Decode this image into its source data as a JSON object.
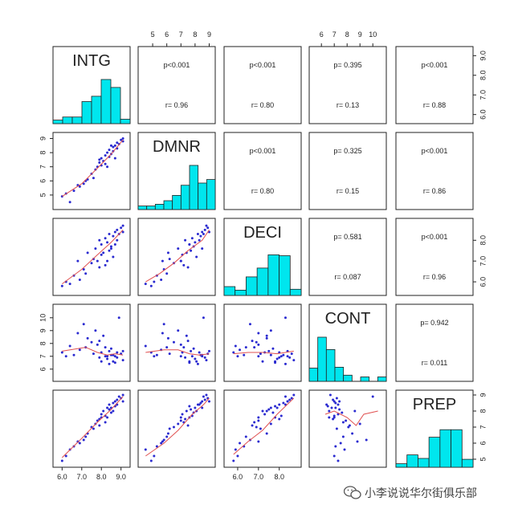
{
  "chart_data": {
    "type": "scatter-matrix",
    "variables": [
      "INTG",
      "DMNR",
      "DECI",
      "CONT",
      "PREP"
    ],
    "axes": {
      "INTG": {
        "ticks": [
          6.0,
          7.0,
          8.0,
          9.0
        ],
        "tick_labels": [
          "6.0",
          "7.0",
          "8.0",
          "9.0"
        ],
        "range": [
          5.7,
          9.3
        ]
      },
      "DMNR": {
        "ticks": [
          5,
          6,
          7,
          8,
          9
        ],
        "tick_labels": [
          "5",
          "6",
          "7",
          "8",
          "9"
        ],
        "range": [
          4.2,
          9.2
        ]
      },
      "DECI": {
        "ticks": [
          6.0,
          7.0,
          8.0
        ],
        "tick_labels": [
          "6.0",
          "7.0",
          "8.0"
        ],
        "range": [
          5.5,
          8.9
        ]
      },
      "CONT": {
        "ticks": [
          6,
          7,
          8,
          9,
          10
        ],
        "tick_labels": [
          "6",
          "7",
          "8",
          "9",
          "10"
        ],
        "range": [
          5.3,
          10.8
        ]
      },
      "PREP": {
        "ticks": [
          5,
          6,
          7,
          8,
          9
        ],
        "tick_labels": [
          "5",
          "6",
          "7",
          "8",
          "9"
        ],
        "range": [
          4.7,
          9.1
        ]
      }
    },
    "histograms": {
      "INTG": [
        0.08,
        0.15,
        0.15,
        0.5,
        0.62,
        1.0,
        0.82,
        0.1
      ],
      "DMNR": [
        0.08,
        0.08,
        0.12,
        0.2,
        0.32,
        0.55,
        1.0,
        0.6,
        0.68
      ],
      "DECI": [
        0.2,
        0.12,
        0.42,
        0.62,
        0.92,
        0.9,
        0.14
      ],
      "CONT": [
        0.3,
        1.0,
        0.72,
        0.32,
        0.14,
        0.0,
        0.1,
        0.0,
        0.1
      ],
      "PREP": [
        0.08,
        0.28,
        0.2,
        0.68,
        0.85,
        0.85,
        0.18
      ]
    },
    "correlations": [
      {
        "row": 0,
        "col": 1,
        "p": "p<0.001",
        "r": "r= 0.96"
      },
      {
        "row": 0,
        "col": 2,
        "p": "p<0.001",
        "r": "r= 0.80"
      },
      {
        "row": 0,
        "col": 3,
        "p": "p= 0.395",
        "r": "r= 0.13"
      },
      {
        "row": 0,
        "col": 4,
        "p": "p<0.001",
        "r": "r= 0.88"
      },
      {
        "row": 1,
        "col": 2,
        "p": "p<0.001",
        "r": "r= 0.80"
      },
      {
        "row": 1,
        "col": 3,
        "p": "p= 0.325",
        "r": "r= 0.15"
      },
      {
        "row": 1,
        "col": 4,
        "p": "p<0.001",
        "r": "r= 0.86"
      },
      {
        "row": 2,
        "col": 3,
        "p": "p= 0.581",
        "r": "r= 0.087"
      },
      {
        "row": 2,
        "col": 4,
        "p": "p<0.001",
        "r": "r= 0.96"
      },
      {
        "row": 3,
        "col": 4,
        "p": "p= 0.942",
        "r": "r= 0.011"
      }
    ],
    "observations": [
      {
        "INTG": 6.0,
        "DMNR": 4.9,
        "DECI": 5.8,
        "CONT": 7.3,
        "PREP": 4.9
      },
      {
        "INTG": 6.2,
        "DMNR": 5.1,
        "DECI": 6.0,
        "CONT": 7.0,
        "PREP": 5.2
      },
      {
        "INTG": 6.4,
        "DMNR": 4.5,
        "DECI": 5.9,
        "CONT": 7.8,
        "PREP": 5.6
      },
      {
        "INTG": 6.6,
        "DMNR": 5.3,
        "DECI": 6.3,
        "CONT": 7.1,
        "PREP": 5.8
      },
      {
        "INTG": 6.9,
        "DMNR": 5.6,
        "DECI": 6.1,
        "CONT": 7.5,
        "PREP": 6.0
      },
      {
        "INTG": 7.1,
        "DMNR": 5.8,
        "DECI": 6.6,
        "CONT": 9.5,
        "PREP": 6.2
      },
      {
        "INTG": 7.3,
        "DMNR": 6.1,
        "DECI": 7.4,
        "CONT": 8.4,
        "PREP": 6.6
      },
      {
        "INTG": 7.5,
        "DMNR": 6.5,
        "DECI": 6.9,
        "CONT": 8.1,
        "PREP": 7.0
      },
      {
        "INTG": 7.6,
        "DMNR": 6.2,
        "DECI": 7.1,
        "CONT": 7.2,
        "PREP": 6.9
      },
      {
        "INTG": 7.7,
        "DMNR": 6.8,
        "DECI": 7.6,
        "CONT": 9.0,
        "PREP": 7.2
      },
      {
        "INTG": 7.8,
        "DMNR": 7.0,
        "DECI": 7.0,
        "CONT": 7.9,
        "PREP": 7.4
      },
      {
        "INTG": 7.9,
        "DMNR": 7.3,
        "DECI": 8.0,
        "CONT": 6.9,
        "PREP": 7.5
      },
      {
        "INTG": 8.0,
        "DMNR": 7.1,
        "DECI": 7.3,
        "CONT": 7.3,
        "PREP": 7.8
      },
      {
        "INTG": 8.0,
        "DMNR": 7.6,
        "DECI": 7.8,
        "CONT": 6.6,
        "PREP": 7.6
      },
      {
        "INTG": 8.1,
        "DMNR": 7.4,
        "DECI": 7.4,
        "CONT": 8.6,
        "PREP": 8.0
      },
      {
        "INTG": 8.2,
        "DMNR": 7.8,
        "DECI": 8.1,
        "CONT": 7.0,
        "PREP": 7.7
      },
      {
        "INTG": 8.2,
        "DMNR": 7.2,
        "DECI": 6.8,
        "CONT": 7.7,
        "PREP": 7.3
      },
      {
        "INTG": 8.3,
        "DMNR": 8.0,
        "DECI": 7.9,
        "CONT": 6.8,
        "PREP": 8.2
      },
      {
        "INTG": 8.4,
        "DMNR": 7.7,
        "DECI": 7.5,
        "CONT": 7.4,
        "PREP": 8.1
      },
      {
        "INTG": 8.4,
        "DMNR": 8.2,
        "DECI": 8.3,
        "CONT": 6.4,
        "PREP": 8.4
      },
      {
        "INTG": 8.5,
        "DMNR": 7.9,
        "DECI": 7.7,
        "CONT": 7.6,
        "PREP": 7.9
      },
      {
        "INTG": 8.6,
        "DMNR": 8.4,
        "DECI": 8.2,
        "CONT": 7.1,
        "PREP": 8.5
      },
      {
        "INTG": 8.6,
        "DMNR": 8.1,
        "DECI": 7.2,
        "CONT": 6.6,
        "PREP": 8.0
      },
      {
        "INTG": 8.7,
        "DMNR": 8.5,
        "DECI": 8.4,
        "CONT": 7.0,
        "PREP": 8.6
      },
      {
        "INTG": 8.8,
        "DMNR": 8.3,
        "DECI": 8.0,
        "CONT": 7.3,
        "PREP": 8.4
      },
      {
        "INTG": 8.8,
        "DMNR": 8.7,
        "DECI": 8.5,
        "CONT": 6.9,
        "PREP": 8.7
      },
      {
        "INTG": 8.9,
        "DMNR": 8.6,
        "DECI": 8.3,
        "CONT": 10.0,
        "PREP": 8.9
      },
      {
        "INTG": 9.0,
        "DMNR": 8.9,
        "DECI": 8.6,
        "CONT": 7.2,
        "PREP": 8.8
      },
      {
        "INTG": 9.1,
        "DMNR": 8.8,
        "DECI": 8.7,
        "CONT": 6.7,
        "PREP": 9.0
      },
      {
        "INTG": 9.1,
        "DMNR": 9.0,
        "DECI": 8.4,
        "CONT": 7.4,
        "PREP": 8.6
      },
      {
        "INTG": 7.2,
        "DMNR": 6.0,
        "DECI": 6.4,
        "CONT": 7.7,
        "PREP": 6.4
      },
      {
        "INTG": 7.9,
        "DMNR": 7.5,
        "DECI": 6.7,
        "CONT": 8.2,
        "PREP": 7.1
      },
      {
        "INTG": 8.3,
        "DMNR": 7.0,
        "DECI": 7.0,
        "CONT": 7.0,
        "PREP": 7.6
      },
      {
        "INTG": 8.7,
        "DMNR": 7.6,
        "DECI": 7.8,
        "CONT": 6.5,
        "PREP": 8.3
      },
      {
        "INTG": 6.8,
        "DMNR": 5.7,
        "DECI": 7.0,
        "CONT": 8.8,
        "PREP": 6.1
      },
      {
        "INTG": 8.5,
        "DMNR": 8.5,
        "DECI": 7.6,
        "CONT": 7.1,
        "PREP": 8.2
      }
    ],
    "lowess": {
      "INTG|DMNR": [
        [
          6.0,
          4.9
        ],
        [
          7.0,
          5.8
        ],
        [
          7.8,
          6.9
        ],
        [
          8.5,
          7.9
        ],
        [
          9.1,
          8.9
        ]
      ],
      "INTG|DECI": [
        [
          6.0,
          5.9
        ],
        [
          7.0,
          6.6
        ],
        [
          7.8,
          7.3
        ],
        [
          8.5,
          7.9
        ],
        [
          9.1,
          8.5
        ]
      ],
      "DMNR|DECI": [
        [
          4.5,
          6.0
        ],
        [
          5.5,
          6.4
        ],
        [
          6.5,
          6.9
        ],
        [
          7.5,
          7.5
        ],
        [
          8.5,
          8.0
        ],
        [
          9.0,
          8.5
        ]
      ],
      "INTG|CONT": [
        [
          6.0,
          7.4
        ],
        [
          7.2,
          7.7
        ],
        [
          7.8,
          7.3
        ],
        [
          8.3,
          7.1
        ],
        [
          8.7,
          7.2
        ],
        [
          9.1,
          7.1
        ]
      ],
      "DMNR|CONT": [
        [
          4.5,
          7.3
        ],
        [
          5.8,
          7.5
        ],
        [
          6.8,
          7.5
        ],
        [
          7.6,
          7.2
        ],
        [
          8.3,
          7.1
        ],
        [
          9.0,
          7.2
        ]
      ],
      "DECI|CONT": [
        [
          5.8,
          7.2
        ],
        [
          6.5,
          7.3
        ],
        [
          7.2,
          7.3
        ],
        [
          7.9,
          7.2
        ],
        [
          8.7,
          7.4
        ]
      ],
      "INTG|PREP": [
        [
          6.0,
          5.1
        ],
        [
          7.0,
          6.3
        ],
        [
          7.8,
          7.3
        ],
        [
          8.5,
          8.1
        ],
        [
          9.1,
          8.9
        ]
      ],
      "DMNR|PREP": [
        [
          4.5,
          5.2
        ],
        [
          5.8,
          6.0
        ],
        [
          6.8,
          6.8
        ],
        [
          7.8,
          7.8
        ],
        [
          8.6,
          8.4
        ],
        [
          9.0,
          8.8
        ]
      ],
      "DECI|PREP": [
        [
          5.8,
          5.3
        ],
        [
          6.5,
          6.1
        ],
        [
          7.2,
          6.8
        ],
        [
          7.9,
          7.8
        ],
        [
          8.7,
          8.8
        ]
      ],
      "CONT|PREP": [
        [
          6.3,
          7.8
        ],
        [
          7.0,
          8.0
        ],
        [
          8.0,
          7.6
        ],
        [
          8.7,
          7.1
        ],
        [
          9.3,
          7.8
        ],
        [
          10.4,
          8.0
        ]
      ]
    },
    "lowess_pairs": [
      "INTG|DMNR",
      "INTG|DECI",
      "DMNR|DECI",
      "INTG|CONT",
      "DMNR|CONT",
      "DECI|CONT",
      "INTG|PREP",
      "DMNR|PREP",
      "DECI|PREP",
      "CONT|PREP"
    ],
    "colors": {
      "bar": "#00e6ee",
      "point": "#2a2ad0",
      "smooth": "#e05050",
      "frame": "#222222"
    }
  },
  "watermark": {
    "text": "小李说说华尔街俱乐部"
  }
}
